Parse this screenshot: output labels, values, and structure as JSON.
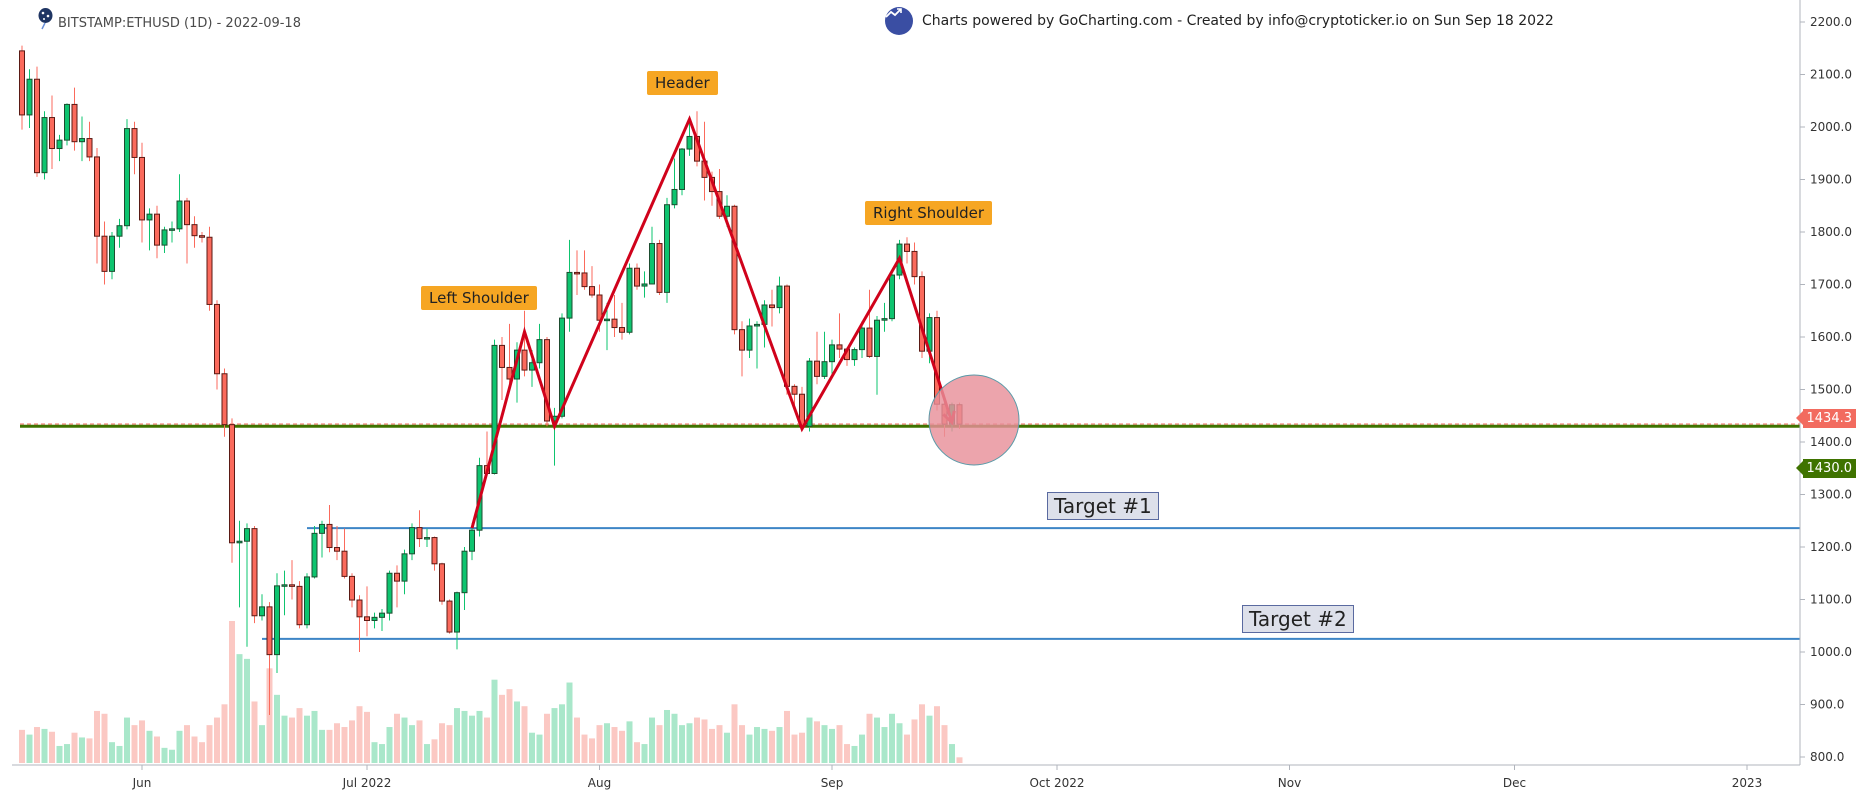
{
  "header": {
    "title": "BITSTAMP:ETHUSD (1D) - 2022-09-18",
    "credit": "Charts powered by GoCharting.com - Created by info@cryptoticker.io on Sun Sep 18 2022",
    "logo_icon": "balloon-stars-icon",
    "credit_icon": "trend-up-icon"
  },
  "chart_data": {
    "type": "candlestick",
    "symbol": "BITSTAMP:ETHUSD",
    "interval": "1D",
    "ylim": [
      780,
      2240
    ],
    "y_ticks": [
      "800.0",
      "900.0",
      "1000.0",
      "1100.0",
      "1200.0",
      "1300.0",
      "1400.0",
      "1500.0",
      "1600.0",
      "1700.0",
      "1800.0",
      "1900.0",
      "2000.0",
      "2100.0",
      "2200.0"
    ],
    "x_ticks": [
      {
        "date": "2022-06-01",
        "label": "Jun"
      },
      {
        "date": "2022-07-01",
        "label": "Jul 2022"
      },
      {
        "date": "2022-08-01",
        "label": "Aug"
      },
      {
        "date": "2022-09-01",
        "label": "Sep"
      },
      {
        "date": "2022-10-01",
        "label": "Oct 2022"
      },
      {
        "date": "2022-11-01",
        "label": "Nov"
      },
      {
        "date": "2022-12-01",
        "label": "Dec"
      },
      {
        "date": "2023-01-01",
        "label": "2023"
      }
    ],
    "columns": [
      "date",
      "open",
      "high",
      "low",
      "close",
      "volume"
    ],
    "candles": [
      [
        "2022-05-16",
        2145,
        2155,
        1995,
        2023,
        35
      ],
      [
        "2022-05-17",
        2023,
        2110,
        1998,
        2091,
        30
      ],
      [
        "2022-05-18",
        2091,
        2115,
        1905,
        1913,
        38
      ],
      [
        "2022-05-19",
        1913,
        2030,
        1900,
        2018,
        36
      ],
      [
        "2022-05-20",
        2018,
        2060,
        1920,
        1959,
        33
      ],
      [
        "2022-05-21",
        1959,
        1985,
        1935,
        1975,
        18
      ],
      [
        "2022-05-22",
        1975,
        2045,
        1965,
        2043,
        20
      ],
      [
        "2022-05-23",
        2043,
        2075,
        1955,
        1972,
        32
      ],
      [
        "2022-05-24",
        1972,
        2020,
        1935,
        1978,
        27
      ],
      [
        "2022-05-25",
        1978,
        2010,
        1935,
        1943,
        26
      ],
      [
        "2022-05-26",
        1943,
        1960,
        1740,
        1792,
        55
      ],
      [
        "2022-05-27",
        1792,
        1820,
        1700,
        1725,
        52
      ],
      [
        "2022-05-28",
        1725,
        1800,
        1710,
        1792,
        22
      ],
      [
        "2022-05-29",
        1792,
        1825,
        1770,
        1812,
        18
      ],
      [
        "2022-05-30",
        1812,
        2015,
        1805,
        1997,
        48
      ],
      [
        "2022-05-31",
        1997,
        2010,
        1910,
        1942,
        40
      ],
      [
        "2022-06-01",
        1942,
        1970,
        1780,
        1823,
        45
      ],
      [
        "2022-06-02",
        1823,
        1845,
        1765,
        1834,
        34
      ],
      [
        "2022-06-03",
        1834,
        1850,
        1750,
        1775,
        28
      ],
      [
        "2022-06-04",
        1775,
        1810,
        1760,
        1804,
        16
      ],
      [
        "2022-06-05",
        1804,
        1820,
        1780,
        1806,
        14
      ],
      [
        "2022-06-06",
        1806,
        1910,
        1800,
        1859,
        34
      ],
      [
        "2022-06-07",
        1859,
        1865,
        1740,
        1814,
        40
      ],
      [
        "2022-06-08",
        1814,
        1830,
        1770,
        1793,
        28
      ],
      [
        "2022-06-09",
        1793,
        1800,
        1780,
        1790,
        22
      ],
      [
        "2022-06-10",
        1790,
        1810,
        1650,
        1662,
        40
      ],
      [
        "2022-06-11",
        1662,
        1670,
        1500,
        1530,
        48
      ],
      [
        "2022-06-12",
        1530,
        1540,
        1410,
        1433,
        62
      ],
      [
        "2022-06-13",
        1433,
        1445,
        1170,
        1208,
        150
      ],
      [
        "2022-06-14",
        1208,
        1250,
        1085,
        1211,
        115
      ],
      [
        "2022-06-15",
        1211,
        1245,
        1010,
        1235,
        110
      ],
      [
        "2022-06-16",
        1235,
        1240,
        1055,
        1069,
        65
      ],
      [
        "2022-06-17",
        1069,
        1110,
        1060,
        1086,
        40
      ],
      [
        "2022-06-18",
        1086,
        1095,
        880,
        995,
        100
      ],
      [
        "2022-06-19",
        995,
        1150,
        960,
        1126,
        72
      ],
      [
        "2022-06-20",
        1126,
        1155,
        1070,
        1128,
        50
      ],
      [
        "2022-06-21",
        1128,
        1175,
        1100,
        1125,
        48
      ],
      [
        "2022-06-22",
        1125,
        1135,
        1045,
        1052,
        58
      ],
      [
        "2022-06-23",
        1052,
        1150,
        1045,
        1143,
        50
      ],
      [
        "2022-06-24",
        1143,
        1240,
        1140,
        1226,
        55
      ],
      [
        "2022-06-25",
        1226,
        1250,
        1180,
        1243,
        35
      ],
      [
        "2022-06-26",
        1243,
        1280,
        1190,
        1199,
        35
      ],
      [
        "2022-06-27",
        1199,
        1240,
        1175,
        1192,
        42
      ],
      [
        "2022-06-28",
        1192,
        1235,
        1140,
        1144,
        38
      ],
      [
        "2022-06-29",
        1144,
        1150,
        1085,
        1099,
        45
      ],
      [
        "2022-06-30",
        1099,
        1108,
        1000,
        1067,
        60
      ],
      [
        "2022-07-01",
        1067,
        1125,
        1030,
        1060,
        54
      ],
      [
        "2022-07-02",
        1060,
        1075,
        1045,
        1066,
        22
      ],
      [
        "2022-07-03",
        1066,
        1082,
        1040,
        1074,
        20
      ],
      [
        "2022-07-04",
        1074,
        1155,
        1060,
        1150,
        38
      ],
      [
        "2022-07-05",
        1150,
        1165,
        1085,
        1135,
        52
      ],
      [
        "2022-07-06",
        1135,
        1195,
        1110,
        1187,
        48
      ],
      [
        "2022-07-07",
        1187,
        1245,
        1175,
        1237,
        40
      ],
      [
        "2022-07-08",
        1237,
        1270,
        1200,
        1216,
        45
      ],
      [
        "2022-07-09",
        1216,
        1235,
        1200,
        1218,
        20
      ],
      [
        "2022-07-10",
        1218,
        1220,
        1155,
        1168,
        25
      ],
      [
        "2022-07-11",
        1168,
        1170,
        1090,
        1097,
        42
      ],
      [
        "2022-07-12",
        1097,
        1100,
        1035,
        1038,
        40
      ],
      [
        "2022-07-13",
        1038,
        1115,
        1005,
        1113,
        58
      ],
      [
        "2022-07-14",
        1113,
        1200,
        1080,
        1192,
        55
      ],
      [
        "2022-07-15",
        1192,
        1245,
        1175,
        1232,
        50
      ],
      [
        "2022-07-16",
        1232,
        1370,
        1220,
        1355,
        55
      ],
      [
        "2022-07-17",
        1355,
        1420,
        1335,
        1340,
        48
      ],
      [
        "2022-07-18",
        1340,
        1595,
        1338,
        1584,
        88
      ],
      [
        "2022-07-19",
        1584,
        1600,
        1480,
        1542,
        72
      ],
      [
        "2022-07-20",
        1542,
        1625,
        1500,
        1520,
        78
      ],
      [
        "2022-07-21",
        1520,
        1590,
        1475,
        1575,
        65
      ],
      [
        "2022-07-22",
        1575,
        1650,
        1525,
        1537,
        60
      ],
      [
        "2022-07-23",
        1537,
        1575,
        1505,
        1551,
        32
      ],
      [
        "2022-07-24",
        1551,
        1625,
        1540,
        1595,
        30
      ],
      [
        "2022-07-25",
        1595,
        1600,
        1430,
        1440,
        52
      ],
      [
        "2022-07-26",
        1440,
        1465,
        1355,
        1449,
        58
      ],
      [
        "2022-07-27",
        1449,
        1645,
        1445,
        1636,
        62
      ],
      [
        "2022-07-28",
        1636,
        1785,
        1610,
        1723,
        85
      ],
      [
        "2022-07-29",
        1723,
        1765,
        1680,
        1722,
        48
      ],
      [
        "2022-07-30",
        1722,
        1765,
        1690,
        1696,
        30
      ],
      [
        "2022-07-31",
        1696,
        1735,
        1675,
        1680,
        26
      ],
      [
        "2022-08-01",
        1680,
        1700,
        1610,
        1632,
        40
      ],
      [
        "2022-08-02",
        1632,
        1665,
        1575,
        1634,
        42
      ],
      [
        "2022-08-03",
        1634,
        1680,
        1600,
        1618,
        38
      ],
      [
        "2022-08-04",
        1618,
        1665,
        1595,
        1609,
        34
      ],
      [
        "2022-08-05",
        1609,
        1740,
        1605,
        1731,
        44
      ],
      [
        "2022-08-06",
        1731,
        1740,
        1690,
        1697,
        22
      ],
      [
        "2022-08-07",
        1697,
        1725,
        1675,
        1701,
        20
      ],
      [
        "2022-08-08",
        1701,
        1810,
        1700,
        1778,
        48
      ],
      [
        "2022-08-09",
        1778,
        1785,
        1680,
        1685,
        40
      ],
      [
        "2022-08-10",
        1685,
        1865,
        1665,
        1852,
        56
      ],
      [
        "2022-08-11",
        1852,
        1940,
        1845,
        1881,
        52
      ],
      [
        "2022-08-12",
        1881,
        1960,
        1870,
        1958,
        40
      ],
      [
        "2022-08-13",
        1958,
        2020,
        1945,
        1982,
        42
      ],
      [
        "2022-08-14",
        1982,
        2030,
        1925,
        1935,
        48
      ],
      [
        "2022-08-15",
        1935,
        2010,
        1860,
        1904,
        46
      ],
      [
        "2022-08-16",
        1904,
        1915,
        1850,
        1877,
        36
      ],
      [
        "2022-08-17",
        1877,
        1920,
        1825,
        1830,
        40
      ],
      [
        "2022-08-18",
        1830,
        1870,
        1810,
        1849,
        32
      ],
      [
        "2022-08-19",
        1849,
        1852,
        1605,
        1614,
        62
      ],
      [
        "2022-08-20",
        1614,
        1630,
        1525,
        1575,
        40
      ],
      [
        "2022-08-21",
        1575,
        1635,
        1560,
        1621,
        30
      ],
      [
        "2022-08-22",
        1621,
        1630,
        1540,
        1624,
        38
      ],
      [
        "2022-08-23",
        1624,
        1670,
        1580,
        1661,
        36
      ],
      [
        "2022-08-24",
        1661,
        1690,
        1620,
        1656,
        34
      ],
      [
        "2022-08-25",
        1656,
        1715,
        1645,
        1697,
        38
      ],
      [
        "2022-08-26",
        1697,
        1700,
        1490,
        1506,
        55
      ],
      [
        "2022-08-27",
        1506,
        1510,
        1460,
        1491,
        30
      ],
      [
        "2022-08-28",
        1491,
        1505,
        1425,
        1430,
        32
      ],
      [
        "2022-08-29",
        1430,
        1560,
        1420,
        1554,
        48
      ],
      [
        "2022-08-30",
        1554,
        1610,
        1510,
        1525,
        44
      ],
      [
        "2022-08-31",
        1525,
        1610,
        1520,
        1553,
        40
      ],
      [
        "2022-09-01",
        1553,
        1595,
        1530,
        1585,
        36
      ],
      [
        "2022-09-02",
        1585,
        1645,
        1560,
        1577,
        40
      ],
      [
        "2022-09-03",
        1577,
        1580,
        1545,
        1557,
        20
      ],
      [
        "2022-09-04",
        1557,
        1580,
        1545,
        1576,
        18
      ],
      [
        "2022-09-05",
        1576,
        1630,
        1560,
        1617,
        30
      ],
      [
        "2022-09-06",
        1617,
        1690,
        1560,
        1563,
        52
      ],
      [
        "2022-09-07",
        1563,
        1640,
        1490,
        1632,
        48
      ],
      [
        "2022-09-08",
        1632,
        1665,
        1610,
        1635,
        38
      ],
      [
        "2022-09-09",
        1635,
        1725,
        1630,
        1718,
        52
      ],
      [
        "2022-09-10",
        1718,
        1785,
        1710,
        1777,
        42
      ],
      [
        "2022-09-11",
        1777,
        1790,
        1740,
        1763,
        30
      ],
      [
        "2022-09-12",
        1763,
        1780,
        1700,
        1715,
        46
      ],
      [
        "2022-09-13",
        1715,
        1725,
        1560,
        1573,
        62
      ],
      [
        "2022-09-14",
        1573,
        1645,
        1550,
        1637,
        50
      ],
      [
        "2022-09-15",
        1637,
        1650,
        1460,
        1472,
        60
      ],
      [
        "2022-09-16",
        1472,
        1480,
        1410,
        1434,
        40
      ],
      [
        "2022-09-17",
        1434,
        1475,
        1420,
        1471,
        20
      ],
      [
        "2022-09-18",
        1471,
        1475,
        1425,
        1434,
        6
      ]
    ],
    "last_price": {
      "value": 1434.3,
      "label": "1434.3"
    },
    "neckline": {
      "value": 1430.0,
      "label": "1430.0"
    },
    "pattern": {
      "points": [
        [
          "2022-07-15",
          1236
        ],
        [
          "2022-07-22",
          1610
        ],
        [
          "2022-07-26",
          1430
        ],
        [
          "2022-08-13",
          2015
        ],
        [
          "2022-08-28",
          1425
        ],
        [
          "2022-09-10",
          1750
        ],
        [
          "2022-09-17",
          1437
        ]
      ],
      "labels": {
        "left_shoulder": "Left Shoulder",
        "head": "Header",
        "right_shoulder": "Right Shoulder"
      }
    },
    "targets": [
      {
        "label": "Target #1",
        "value": 1236,
        "from": "2022-06-23"
      },
      {
        "label": "Target #2",
        "value": 1025,
        "from": "2022-06-17"
      }
    ],
    "colors": {
      "up": "#0ec46f",
      "down": "#fb6a5c",
      "up_border": "#1d4d30",
      "down_border": "#5a1a14",
      "vol_up": "#a9e7ca",
      "vol_down": "#fbc8c3",
      "pattern": "#d0021b",
      "neckline": "#3f7300",
      "target_line": "#3d85c6",
      "last_price": "#f26b5f",
      "highlight": "#e8909a",
      "label_bg": "#f6a623"
    }
  }
}
